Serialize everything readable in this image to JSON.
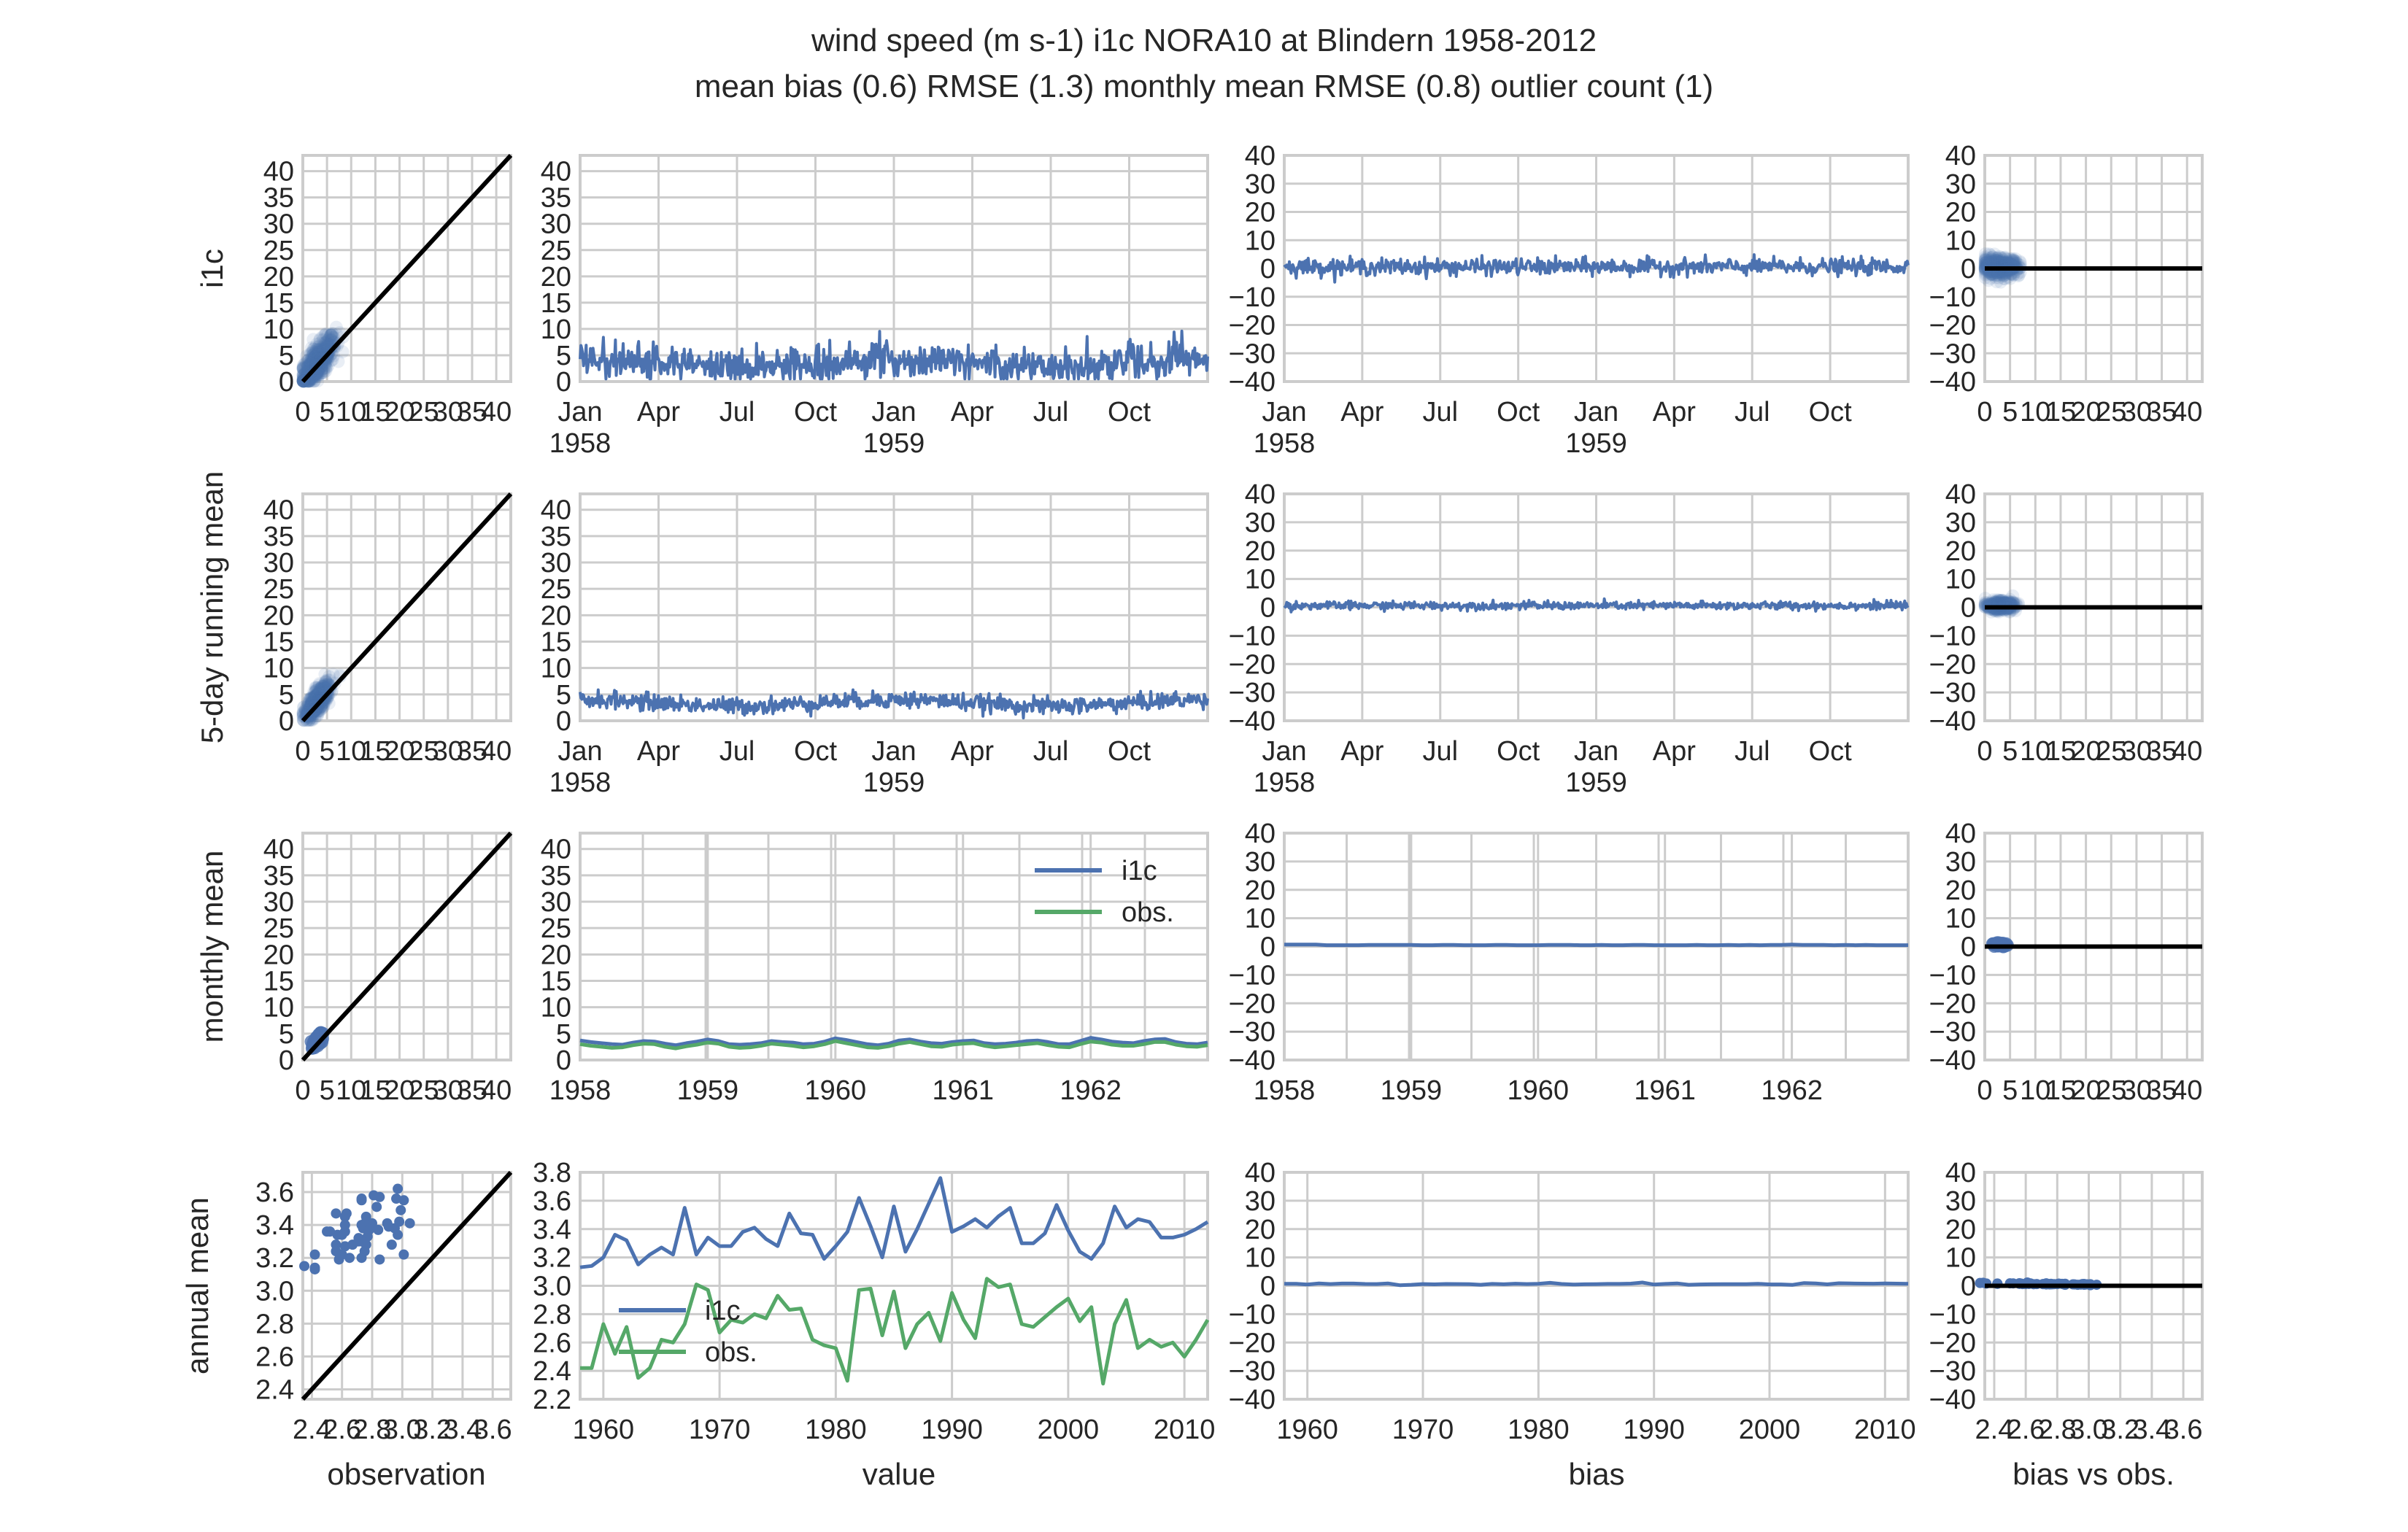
{
  "title": {
    "line1": "wind speed (m s-1) i1c NORA10 at Blindern 1958-2012",
    "line2": "mean bias (0.6) RMSE (1.3) monthly mean RMSE (0.8) outlier count (1)"
  },
  "colors": {
    "model": "#4c72b0",
    "obs": "#55a868",
    "identity": "#000000",
    "grid": "#cccccc",
    "frame": "#cccccc"
  },
  "row_labels": [
    "i1c",
    "5-day running mean",
    "monthly mean",
    "annual mean"
  ],
  "column_labels": [
    "observation",
    "value",
    "bias",
    "bias vs obs."
  ],
  "legend": {
    "model": "i1c",
    "obs": "obs."
  },
  "chart_data": {
    "type": "line",
    "grid": true,
    "panels_note": "4 rows (daily, 5-day running mean, monthly mean, annual mean) x 4 columns (scatter model vs obs, time series value, time series bias, bias vs obs)",
    "value_axis_ticks": [
      "0",
      "5",
      "10",
      "15",
      "20",
      "25",
      "30",
      "35",
      "40"
    ],
    "obs_axis_ticks": [
      "0",
      "5",
      "10",
      "15",
      "20",
      "25",
      "30",
      "35",
      "40"
    ],
    "bias_axis_ticks": [
      "40",
      "30",
      "20",
      "10",
      "0",
      "−10",
      "−20",
      "−30",
      "−40"
    ],
    "daily_time_ticks": [
      {
        "label": "Jan",
        "sub": "1958"
      },
      {
        "label": "Apr",
        "sub": ""
      },
      {
        "label": "Jul",
        "sub": ""
      },
      {
        "label": "Oct",
        "sub": ""
      },
      {
        "label": "Jan",
        "sub": "1959"
      },
      {
        "label": "Apr",
        "sub": ""
      },
      {
        "label": "Jul",
        "sub": ""
      },
      {
        "label": "Oct",
        "sub": ""
      }
    ],
    "monthly_time_ticks": [
      "1958",
      "1959",
      "1960",
      "1961",
      "1962"
    ],
    "annual_time_ticks": [
      "1960",
      "1970",
      "1980",
      "1990",
      "2000",
      "2010"
    ],
    "annual_scatter_x_ticks": [
      "2.4",
      "2.6",
      "2.8",
      "3.0",
      "3.2",
      "3.4",
      "3.6"
    ],
    "annual_scatter_y_ticks": [
      "2.4",
      "2.6",
      "2.8",
      "3.0",
      "3.2",
      "3.4",
      "3.6"
    ],
    "annual_value_y_ticks": [
      "2.2",
      "2.4",
      "2.6",
      "2.8",
      "3.0",
      "3.2",
      "3.4",
      "3.6",
      "3.8"
    ],
    "annual": {
      "years": [
        1958,
        1959,
        1960,
        1961,
        1962,
        1963,
        1964,
        1965,
        1966,
        1967,
        1968,
        1969,
        1970,
        1971,
        1972,
        1973,
        1974,
        1975,
        1976,
        1977,
        1978,
        1979,
        1980,
        1981,
        1982,
        1983,
        1984,
        1985,
        1986,
        1987,
        1988,
        1989,
        1990,
        1991,
        1992,
        1993,
        1994,
        1995,
        1996,
        1997,
        1998,
        1999,
        2000,
        2001,
        2002,
        2003,
        2004,
        2005,
        2006,
        2007,
        2008,
        2009,
        2010,
        2011,
        2012
      ],
      "i1c": [
        3.13,
        3.14,
        3.2,
        3.36,
        3.32,
        3.15,
        3.22,
        3.27,
        3.22,
        3.55,
        3.22,
        3.34,
        3.28,
        3.28,
        3.38,
        3.41,
        3.33,
        3.28,
        3.51,
        3.37,
        3.36,
        3.19,
        3.28,
        3.38,
        3.62,
        3.42,
        3.2,
        3.56,
        3.24,
        3.4,
        3.58,
        3.76,
        3.38,
        3.42,
        3.47,
        3.41,
        3.49,
        3.55,
        3.3,
        3.3,
        3.37,
        3.57,
        3.39,
        3.24,
        3.19,
        3.3,
        3.56,
        3.41,
        3.47,
        3.45,
        3.34,
        3.34,
        3.36,
        3.4,
        3.45
      ],
      "obs": [
        2.42,
        2.42,
        2.73,
        2.52,
        2.71,
        2.35,
        2.42,
        2.62,
        2.6,
        2.73,
        3.01,
        2.97,
        2.67,
        2.76,
        2.74,
        2.8,
        2.77,
        2.93,
        2.83,
        2.84,
        2.62,
        2.58,
        2.56,
        2.33,
        2.97,
        2.98,
        2.65,
        2.96,
        2.56,
        2.73,
        2.81,
        2.61,
        2.95,
        2.76,
        2.63,
        3.05,
        2.99,
        3.01,
        2.73,
        2.71,
        2.78,
        2.85,
        2.91,
        2.75,
        2.85,
        2.31,
        2.73,
        2.9,
        2.56,
        2.62,
        2.57,
        2.6,
        2.5,
        2.62,
        2.76
      ]
    },
    "monthly": {
      "i1c": [
        3.7,
        3.4,
        3.2,
        3.0,
        2.9,
        3.3,
        3.6,
        3.5,
        3.1,
        2.8,
        3.2,
        3.5,
        3.9,
        3.6,
        3.0,
        2.9,
        3.0,
        3.2,
        3.6,
        3.4,
        3.3,
        3.0,
        3.1,
        3.5,
        4.1,
        3.8,
        3.4,
        3.0,
        2.8,
        3.1,
        3.7,
        3.9,
        3.5,
        3.2,
        3.1,
        3.4,
        3.6,
        3.7,
        3.2,
        3.0,
        3.1,
        3.3,
        3.6,
        3.7,
        3.4,
        3.0,
        3.0,
        3.6,
        4.2,
        3.9,
        3.5,
        3.3,
        3.2,
        3.6,
        3.9,
        4.0,
        3.4,
        3.1,
        3.0,
        3.3
      ],
      "obs": [
        3.0,
        2.7,
        2.5,
        2.3,
        2.4,
        2.8,
        3.1,
        3.0,
        2.5,
        2.2,
        2.6,
        2.9,
        3.3,
        3.1,
        2.5,
        2.3,
        2.4,
        2.7,
        3.1,
        2.9,
        2.7,
        2.4,
        2.6,
        3.0,
        3.6,
        3.2,
        2.8,
        2.4,
        2.3,
        2.6,
        3.1,
        3.4,
        3.0,
        2.6,
        2.5,
        2.9,
        3.1,
        3.2,
        2.7,
        2.4,
        2.6,
        2.8,
        3.0,
        3.2,
        2.8,
        2.5,
        2.4,
        3.0,
        3.5,
        3.3,
        2.9,
        2.7,
        2.7,
        3.0,
        3.4,
        3.4,
        2.9,
        2.6,
        2.5,
        2.8
      ],
      "bias": [
        0.7,
        0.7,
        0.7,
        0.7,
        0.5,
        0.5,
        0.5,
        0.5,
        0.6,
        0.6,
        0.6,
        0.6,
        0.6,
        0.5,
        0.5,
        0.6,
        0.6,
        0.5,
        0.5,
        0.5,
        0.6,
        0.6,
        0.5,
        0.5,
        0.5,
        0.6,
        0.6,
        0.6,
        0.5,
        0.5,
        0.6,
        0.5,
        0.5,
        0.6,
        0.6,
        0.5,
        0.5,
        0.5,
        0.5,
        0.6,
        0.5,
        0.5,
        0.6,
        0.5,
        0.6,
        0.5,
        0.6,
        0.6,
        0.7,
        0.6,
        0.6,
        0.6,
        0.5,
        0.6,
        0.5,
        0.6,
        0.5,
        0.5,
        0.5,
        0.5
      ]
    },
    "daily_summary": {
      "mean_bias": 0.6,
      "rmse": 1.3,
      "monthly_mean_rmse": 0.8,
      "outlier_count": 1,
      "value_range": [
        0,
        10
      ],
      "bias_range": [
        -4,
        4
      ]
    }
  }
}
